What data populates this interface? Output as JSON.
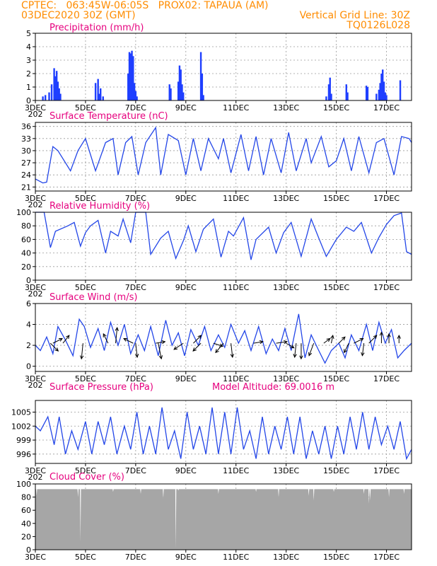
{
  "header": {
    "line1_left": "CPTEC:   063:45W-06:05S   PROX02: TAPAUA (AM)",
    "line2_left": "03DEC2020 30Z (GMT)",
    "line2_right": "Vertical Grid Line: 30Z",
    "line3_right": "TQ0126L028"
  },
  "x_axis": {
    "first_label": "3DEC",
    "first_label_suffix": "202",
    "day_labels": [
      "3DEC",
      "5DEC",
      "7DEC",
      "9DEC",
      "11DEC",
      "13DEC",
      "15DEC",
      "17DEC"
    ],
    "day_positions": [
      3,
      5,
      7,
      9,
      11,
      13,
      15,
      17
    ],
    "range": [
      3,
      18
    ]
  },
  "chart_data": [
    {
      "type": "bar",
      "title": "Precipitation (mm/h)",
      "ylim": [
        0,
        5
      ],
      "yticks": [
        0,
        1,
        2,
        3,
        4,
        5
      ],
      "color": "#1f3fff",
      "x": [
        3.3,
        3.4,
        3.55,
        3.65,
        3.75,
        3.8,
        3.85,
        3.9,
        3.95,
        4.0,
        5.4,
        5.5,
        5.55,
        5.6,
        5.7,
        6.7,
        6.75,
        6.8,
        6.85,
        6.9,
        6.95,
        7.0,
        7.05,
        8.35,
        8.4,
        8.7,
        8.75,
        8.8,
        8.85,
        8.9,
        9.6,
        9.65,
        9.7,
        14.6,
        14.7,
        14.75,
        14.8,
        15.4,
        15.45,
        16.2,
        16.25,
        16.6,
        16.7,
        16.75,
        16.8,
        16.85,
        16.9,
        16.95,
        17.0,
        17.55
      ],
      "values": [
        0.3,
        0.4,
        0.6,
        1.2,
        2.4,
        1.8,
        2.2,
        1.4,
        0.9,
        0.5,
        1.3,
        1.6,
        0.5,
        0.9,
        0.3,
        2.0,
        3.6,
        3.5,
        3.7,
        3.3,
        1.3,
        0.7,
        0.3,
        1.2,
        0.9,
        1.4,
        2.6,
        2.3,
        1.2,
        0.6,
        3.6,
        2.0,
        0.4,
        0.3,
        1.2,
        1.7,
        0.5,
        1.2,
        0.6,
        1.1,
        1.0,
        0.5,
        0.8,
        1.3,
        2.0,
        2.3,
        1.4,
        0.6,
        0.4,
        1.5
      ]
    },
    {
      "type": "line",
      "title": "Surface Temperature (nC)",
      "ylim": [
        20,
        37
      ],
      "yticks": [
        21,
        24,
        27,
        30,
        33,
        36
      ],
      "color": "#2346e8",
      "x": [
        3.0,
        3.3,
        3.45,
        3.7,
        3.9,
        4.4,
        4.7,
        5.0,
        5.4,
        5.8,
        6.1,
        6.3,
        6.6,
        6.85,
        7.1,
        7.4,
        7.8,
        8.0,
        8.3,
        8.7,
        9.0,
        9.3,
        9.6,
        9.9,
        10.3,
        10.5,
        10.8,
        11.2,
        11.5,
        11.8,
        12.1,
        12.4,
        12.8,
        13.1,
        13.4,
        13.8,
        14.0,
        14.4,
        14.7,
        15.0,
        15.3,
        15.6,
        15.9,
        16.3,
        16.6,
        16.9,
        17.3,
        17.6,
        17.9,
        18.0
      ],
      "values": [
        23.0,
        22.0,
        22.2,
        31.0,
        30.0,
        25.0,
        30.0,
        33.0,
        25.0,
        32.0,
        33.0,
        24.0,
        32.0,
        33.5,
        24.0,
        32.0,
        35.7,
        24.0,
        34.0,
        32.5,
        24.0,
        33.0,
        25.0,
        33.0,
        28.0,
        33.0,
        24.5,
        34.0,
        25.0,
        33.5,
        24.0,
        33.0,
        24.5,
        34.5,
        25.0,
        33.0,
        27.0,
        33.5,
        26.0,
        27.5,
        33.0,
        25.0,
        33.5,
        24.5,
        32.0,
        33.0,
        24.0,
        33.5,
        33.0,
        32.0
      ]
    },
    {
      "type": "line",
      "title": "Relative Humidity (%)",
      "ylim": [
        0,
        100
      ],
      "yticks": [
        0,
        20,
        40,
        60,
        80,
        100
      ],
      "color": "#2346e8",
      "x": [
        3.0,
        3.35,
        3.6,
        3.8,
        4.3,
        4.55,
        4.8,
        5.0,
        5.2,
        5.5,
        5.8,
        6.0,
        6.3,
        6.5,
        6.8,
        7.0,
        7.2,
        7.4,
        7.6,
        8.0,
        8.3,
        8.6,
        8.9,
        9.1,
        9.4,
        9.7,
        10.1,
        10.4,
        10.7,
        10.9,
        11.3,
        11.6,
        11.8,
        12.3,
        12.6,
        12.9,
        13.2,
        13.6,
        14.0,
        14.3,
        14.6,
        15.0,
        15.4,
        15.7,
        16.0,
        16.4,
        16.7,
        17.0,
        17.3,
        17.6,
        17.8,
        18.0
      ],
      "values": [
        100,
        100,
        48,
        72,
        80,
        85,
        50,
        70,
        80,
        88,
        40,
        72,
        65,
        90,
        55,
        100,
        100,
        100,
        38,
        62,
        72,
        32,
        58,
        80,
        42,
        75,
        90,
        34,
        72,
        65,
        92,
        30,
        60,
        78,
        40,
        70,
        85,
        35,
        90,
        62,
        35,
        60,
        78,
        72,
        85,
        40,
        63,
        82,
        95,
        99,
        42,
        38
      ]
    },
    {
      "type": "line",
      "title": "Surface Wind (m/s)",
      "ylim": [
        -0.5,
        6
      ],
      "yticks": [
        0,
        2,
        4,
        6
      ],
      "color": "#2346e8",
      "x": [
        3.0,
        3.2,
        3.45,
        3.7,
        3.9,
        4.2,
        4.5,
        4.75,
        4.95,
        5.2,
        5.5,
        5.75,
        6.0,
        6.3,
        6.55,
        6.8,
        7.1,
        7.35,
        7.6,
        7.9,
        8.2,
        8.45,
        8.7,
        8.95,
        9.2,
        9.5,
        9.75,
        10.0,
        10.3,
        10.55,
        10.8,
        11.1,
        11.35,
        11.6,
        11.9,
        12.2,
        12.45,
        12.7,
        12.95,
        13.2,
        13.5,
        13.75,
        14.0,
        14.3,
        14.55,
        14.8,
        15.1,
        15.35,
        15.6,
        15.9,
        16.2,
        16.45,
        16.7,
        16.95,
        17.2,
        17.45,
        17.7,
        18.0
      ],
      "values": [
        2.0,
        1.5,
        2.8,
        1.2,
        3.8,
        2.5,
        1.0,
        4.5,
        3.8,
        1.8,
        3.6,
        1.5,
        4.2,
        2.0,
        4.0,
        1.2,
        3.0,
        1.5,
        3.8,
        1.0,
        4.4,
        2.0,
        3.2,
        1.0,
        3.5,
        2.0,
        3.8,
        1.5,
        3.0,
        1.8,
        4.0,
        2.2,
        3.4,
        1.5,
        3.8,
        1.2,
        2.6,
        1.5,
        3.6,
        1.5,
        5.0,
        0.8,
        3.0,
        1.5,
        0.3,
        1.5,
        2.2,
        0.8,
        3.0,
        1.5,
        4.0,
        1.5,
        4.2,
        2.2,
        3.5,
        0.8,
        1.5,
        2.2
      ],
      "vectors": [
        {
          "x": 3.6,
          "u": 0.5,
          "v": -0.5
        },
        {
          "x": 3.7,
          "u": 0.6,
          "v": 0.3
        },
        {
          "x": 4.1,
          "u": 0.4,
          "v": 0.5
        },
        {
          "x": 4.9,
          "u": -0.1,
          "v": -1.0
        },
        {
          "x": 5.9,
          "u": -0.3,
          "v": 0.6
        },
        {
          "x": 6.2,
          "u": 0.1,
          "v": 1.0
        },
        {
          "x": 6.9,
          "u": -0.6,
          "v": 0.3
        },
        {
          "x": 7.0,
          "u": 0.1,
          "v": -0.9
        },
        {
          "x": 7.8,
          "u": 0.6,
          "v": 0.1
        },
        {
          "x": 7.9,
          "u": 0.2,
          "v": -1.0
        },
        {
          "x": 8.9,
          "u": -0.6,
          "v": -0.4
        },
        {
          "x": 9.3,
          "u": 0.5,
          "v": 0.5
        },
        {
          "x": 9.6,
          "u": -0.5,
          "v": -0.5
        },
        {
          "x": 10.1,
          "u": 0.6,
          "v": -0.2
        },
        {
          "x": 10.5,
          "u": -0.5,
          "v": -0.6
        },
        {
          "x": 10.8,
          "u": 0.1,
          "v": -0.9
        },
        {
          "x": 11.7,
          "u": 0.6,
          "v": 0.1
        },
        {
          "x": 12.6,
          "u": 0.7,
          "v": 0.1
        },
        {
          "x": 13.0,
          "u": 0.5,
          "v": -0.3
        },
        {
          "x": 13.4,
          "u": -0.1,
          "v": -0.9
        },
        {
          "x": 13.6,
          "u": 0.0,
          "v": -1.0
        },
        {
          "x": 14.1,
          "u": -0.3,
          "v": -0.8
        },
        {
          "x": 14.5,
          "u": 0.4,
          "v": 0.3
        },
        {
          "x": 14.8,
          "u": 0.1,
          "v": 0.5
        },
        {
          "x": 15.1,
          "u": 0.4,
          "v": 0.4
        },
        {
          "x": 15.5,
          "u": -0.3,
          "v": -0.6
        },
        {
          "x": 15.7,
          "u": 0.6,
          "v": 0.3
        },
        {
          "x": 16.1,
          "u": -0.1,
          "v": -0.8
        },
        {
          "x": 16.3,
          "u": 0.5,
          "v": 0.5
        },
        {
          "x": 16.8,
          "u": 0.0,
          "v": 0.7
        },
        {
          "x": 17.1,
          "u": 0.0,
          "v": 0.6
        },
        {
          "x": 17.5,
          "u": 0.0,
          "v": 0.5
        }
      ]
    },
    {
      "type": "line",
      "title": "Surface Pressure (hPa)",
      "annotation": "Model Altitude: 69.0016 m",
      "ylim": [
        994,
        1007.5
      ],
      "yticks": [
        996,
        999,
        1002,
        1005
      ],
      "color": "#2346e8",
      "x": [
        3.0,
        3.2,
        3.5,
        3.75,
        3.95,
        4.2,
        4.45,
        4.7,
        5.0,
        5.25,
        5.5,
        5.75,
        6.0,
        6.25,
        6.55,
        6.8,
        7.05,
        7.3,
        7.55,
        7.8,
        8.05,
        8.3,
        8.55,
        8.8,
        9.05,
        9.3,
        9.55,
        9.8,
        10.05,
        10.3,
        10.55,
        10.8,
        11.05,
        11.3,
        11.55,
        11.8,
        12.05,
        12.3,
        12.55,
        12.8,
        13.05,
        13.3,
        13.55,
        13.8,
        14.05,
        14.3,
        14.55,
        14.8,
        15.05,
        15.3,
        15.55,
        15.8,
        16.05,
        16.3,
        16.55,
        16.8,
        17.05,
        17.3,
        17.55,
        17.8,
        18.0
      ],
      "values": [
        1002,
        1001,
        1004,
        998,
        1004,
        996,
        1001,
        997,
        1003,
        996,
        1003,
        998,
        1004,
        996,
        1002,
        997,
        1005,
        996,
        1002,
        996,
        1006,
        997,
        1001,
        995,
        1005,
        997,
        1002,
        996,
        1006,
        996,
        1005,
        996,
        1006,
        997,
        1001,
        995,
        1004,
        996,
        1002,
        997,
        1004,
        996,
        1004,
        995,
        1001,
        996,
        1002,
        995,
        1002,
        996,
        1004,
        997,
        1005,
        997,
        1004,
        998,
        1002,
        997,
        1003,
        995,
        997
      ]
    },
    {
      "type": "bar",
      "title": "Cloud Cover (%)",
      "ylim": [
        0,
        100
      ],
      "yticks": [
        0,
        20,
        40,
        60,
        80,
        100
      ],
      "color": "#a6a6a6",
      "drops": [
        {
          "x": 3.05,
          "value": 82
        },
        {
          "x": 4.7,
          "value": 80
        },
        {
          "x": 4.8,
          "value": 12
        },
        {
          "x": 6.1,
          "value": 88
        },
        {
          "x": 7.2,
          "value": 85
        },
        {
          "x": 8.1,
          "value": 78
        },
        {
          "x": 8.6,
          "value": 2
        },
        {
          "x": 8.7,
          "value": 90
        },
        {
          "x": 10.3,
          "value": 85
        },
        {
          "x": 11.8,
          "value": 88
        },
        {
          "x": 12.7,
          "value": 80
        },
        {
          "x": 13.9,
          "value": 82
        },
        {
          "x": 14.1,
          "value": 75
        },
        {
          "x": 14.9,
          "value": 88
        },
        {
          "x": 16.1,
          "value": 85
        },
        {
          "x": 16.3,
          "value": 70
        },
        {
          "x": 16.35,
          "value": 75
        },
        {
          "x": 17.1,
          "value": 80
        },
        {
          "x": 17.7,
          "value": 85
        }
      ]
    }
  ]
}
